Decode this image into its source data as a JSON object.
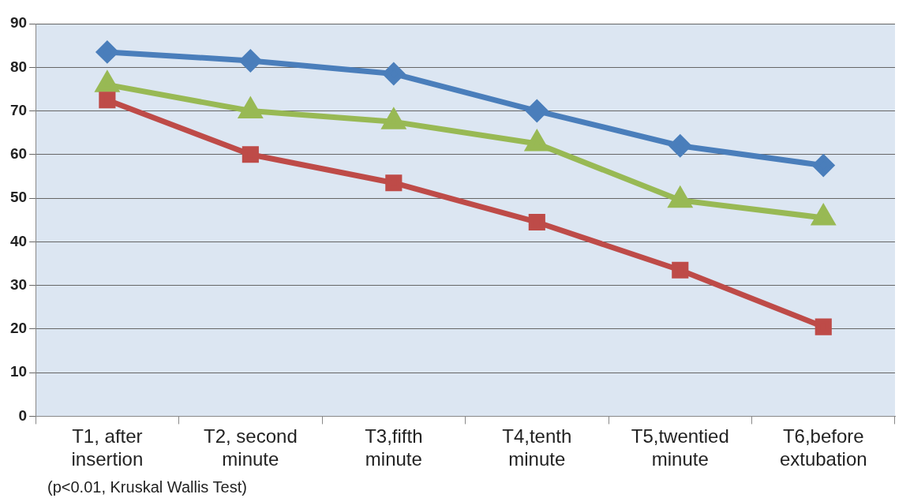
{
  "chart_data": {
    "type": "line",
    "categories": [
      "T1, after\ninsertion",
      "T2, second\nminute",
      "T3,fifth\nminute",
      "T4,tenth\nminute",
      "T5,twentied\nminute",
      "T6,before\nextubation"
    ],
    "series": [
      {
        "color": "#4a7ebb",
        "marker": "diamond",
        "values": [
          83.5,
          81.5,
          78.5,
          70,
          62,
          57.5
        ]
      },
      {
        "color": "#be4b48",
        "marker": "square",
        "values": [
          72.5,
          60,
          53.5,
          44.5,
          33.5,
          20.5
        ]
      },
      {
        "color": "#98b954",
        "marker": "triangle",
        "values": [
          76,
          70,
          67.5,
          62.5,
          49.5,
          45.5
        ]
      }
    ],
    "ylim": [
      0,
      90
    ],
    "yticks": [
      0,
      10,
      20,
      30,
      40,
      50,
      60,
      70,
      80,
      90
    ],
    "grid": "y",
    "legend": false,
    "line_style": "solid",
    "annotations": [
      "(p<0.01, Kruskal Wallis Test)"
    ]
  }
}
